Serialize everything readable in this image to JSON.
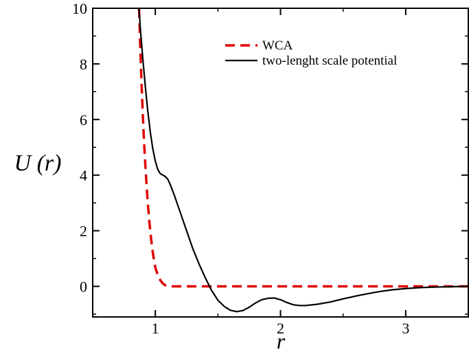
{
  "chart_data": {
    "type": "line",
    "title": "",
    "xlabel": "r",
    "ylabel": "U (r)",
    "xlim": [
      0.5,
      3.5
    ],
    "ylim": [
      -1.1,
      10
    ],
    "x_ticks": [
      1,
      2,
      3
    ],
    "x_tick_labels": [
      "1",
      "2",
      "3"
    ],
    "y_ticks": [
      0,
      2,
      4,
      6,
      8,
      10
    ],
    "y_tick_labels": [
      "0",
      "2",
      "4",
      "6",
      "8",
      "10"
    ],
    "grid": false,
    "legend_position": "top-right",
    "series": [
      {
        "name": "WCA",
        "style": "dashed",
        "color": "#e00000",
        "x": [
          0.87,
          0.88,
          0.89,
          0.9,
          0.91,
          0.92,
          0.93,
          0.94,
          0.95,
          0.96,
          0.97,
          0.98,
          0.99,
          1.0,
          1.02,
          1.04,
          1.06,
          1.08,
          1.1,
          1.12,
          1.2,
          1.5,
          2.0,
          2.5,
          3.0,
          3.5
        ],
        "y": [
          10,
          8.6,
          7.3,
          6.2,
          5.2,
          4.4,
          3.65,
          3.0,
          2.45,
          1.97,
          1.57,
          1.22,
          0.93,
          0.68,
          0.4,
          0.22,
          0.1,
          0.04,
          0.01,
          0,
          0,
          0,
          0,
          0,
          0,
          0
        ]
      },
      {
        "name": "two-lenght scale potential",
        "style": "solid",
        "color": "#000000",
        "x": [
          0.87,
          0.88,
          0.9,
          0.92,
          0.94,
          0.96,
          0.98,
          1.0,
          1.02,
          1.04,
          1.06,
          1.08,
          1.1,
          1.12,
          1.15,
          1.2,
          1.25,
          1.3,
          1.35,
          1.4,
          1.45,
          1.5,
          1.55,
          1.6,
          1.65,
          1.7,
          1.75,
          1.8,
          1.85,
          1.9,
          1.95,
          2.0,
          2.05,
          2.1,
          2.15,
          2.2,
          2.3,
          2.4,
          2.5,
          2.6,
          2.7,
          2.8,
          2.9,
          3.0,
          3.1,
          3.2,
          3.3,
          3.4,
          3.5
        ],
        "y": [
          10,
          9.3,
          8.2,
          7.2,
          6.3,
          5.55,
          4.95,
          4.5,
          4.2,
          4.05,
          4.0,
          3.95,
          3.85,
          3.65,
          3.3,
          2.65,
          2.0,
          1.35,
          0.8,
          0.3,
          -0.15,
          -0.5,
          -0.72,
          -0.86,
          -0.91,
          -0.87,
          -0.75,
          -0.6,
          -0.48,
          -0.43,
          -0.42,
          -0.48,
          -0.58,
          -0.66,
          -0.69,
          -0.69,
          -0.64,
          -0.56,
          -0.45,
          -0.35,
          -0.26,
          -0.18,
          -0.12,
          -0.08,
          -0.05,
          -0.03,
          -0.02,
          -0.01,
          -0.005
        ]
      }
    ]
  }
}
